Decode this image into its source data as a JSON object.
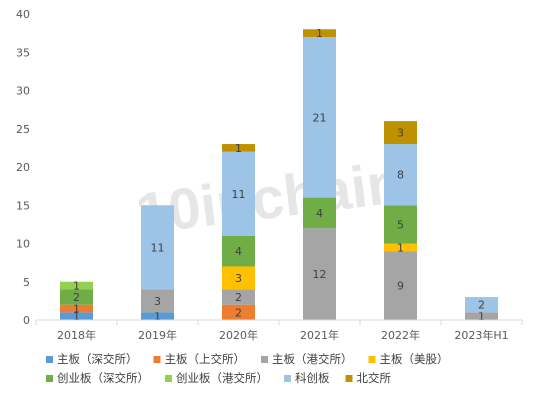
{
  "chart_data": {
    "type": "bar",
    "stacked": true,
    "categories": [
      "2018年",
      "2019年",
      "2020年",
      "2021年",
      "2022年",
      "2023年H1"
    ],
    "ylim": [
      0,
      40
    ],
    "yticks": [
      0,
      5,
      10,
      15,
      20,
      25,
      30,
      35,
      40
    ],
    "grid": false,
    "legend_position": "bottom",
    "series": [
      {
        "name": "主板（深交所）",
        "color": "#5b9bd5",
        "values": [
          1,
          1,
          0,
          0,
          0,
          0
        ],
        "labels": [
          "1",
          "1",
          "",
          "",
          "",
          ""
        ]
      },
      {
        "name": "主板（上交所）",
        "color": "#ed7d31",
        "values": [
          1,
          0,
          2,
          0,
          0,
          0
        ],
        "labels": [
          "1",
          "",
          "2",
          "",
          "",
          ""
        ]
      },
      {
        "name": "主板（港交所）",
        "color": "#a5a5a5",
        "values": [
          0,
          3,
          2,
          12,
          9,
          1
        ],
        "labels": [
          "",
          "3",
          "2",
          "12",
          "9",
          "1"
        ]
      },
      {
        "name": "主板（美股）",
        "color": "#ffc000",
        "values": [
          0,
          0,
          3,
          0,
          1,
          0
        ],
        "labels": [
          "",
          "",
          "3",
          "",
          "1",
          ""
        ]
      },
      {
        "name": "创业板（深交所）",
        "color": "#70ad47",
        "values": [
          2,
          0,
          4,
          4,
          5,
          0
        ],
        "labels": [
          "2",
          "",
          "4",
          "4",
          "5",
          ""
        ]
      },
      {
        "name": "创业板（港交所）",
        "color": "#92d050",
        "values": [
          1,
          0,
          0,
          0,
          0,
          0
        ],
        "labels": [
          "1",
          "",
          "",
          "",
          "",
          ""
        ]
      },
      {
        "name": "科创板",
        "color": "#9dc3e6",
        "values": [
          0,
          11,
          11,
          21,
          8,
          2
        ],
        "labels": [
          "",
          "11",
          "11",
          "21",
          "8",
          "2"
        ]
      },
      {
        "name": "北交所",
        "color": "#bf9000",
        "values": [
          0,
          0,
          1,
          1,
          3,
          0
        ],
        "labels": [
          "",
          "",
          "1",
          "1",
          "3",
          ""
        ]
      }
    ],
    "watermark": "10inchain"
  }
}
